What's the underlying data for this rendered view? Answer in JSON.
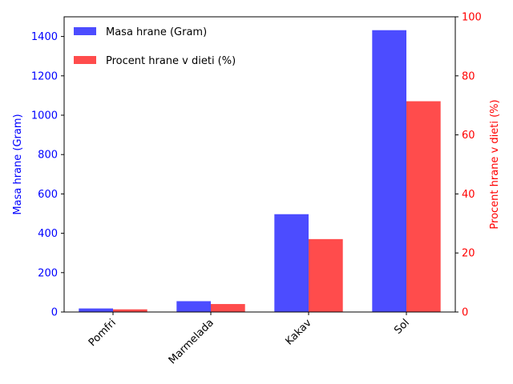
{
  "chart_data": {
    "type": "bar",
    "categories": [
      "Pomfri",
      "Marmelada",
      "Kakav",
      "Sol"
    ],
    "series": [
      {
        "name": "Masa hrane (Gram)",
        "values": [
          18,
          55,
          497,
          1432
        ],
        "axis": "left",
        "color": "#0000ff",
        "opacity": 0.7
      },
      {
        "name": "Procent hrane v dieti (%)",
        "values": [
          0.9,
          2.7,
          24.7,
          71.4
        ],
        "axis": "right",
        "color": "#ff0000",
        "opacity": 0.7
      }
    ],
    "ylabel": "Masa hrane (Gram)",
    "ylabel_color": "#0000ff",
    "ylim": [
      0,
      1500
    ],
    "yticks": [
      "0",
      "200",
      "400",
      "600",
      "800",
      "1000",
      "1200",
      "1400"
    ],
    "y2label": "Procent hrane v dieti (%)",
    "y2label_color": "#ff0000",
    "y2lim": [
      0,
      100
    ],
    "y2ticks": [
      "0",
      "20",
      "40",
      "60",
      "80",
      "100"
    ],
    "legend_position": "top-left",
    "xtick_rotation": "45deg",
    "grid": false
  }
}
